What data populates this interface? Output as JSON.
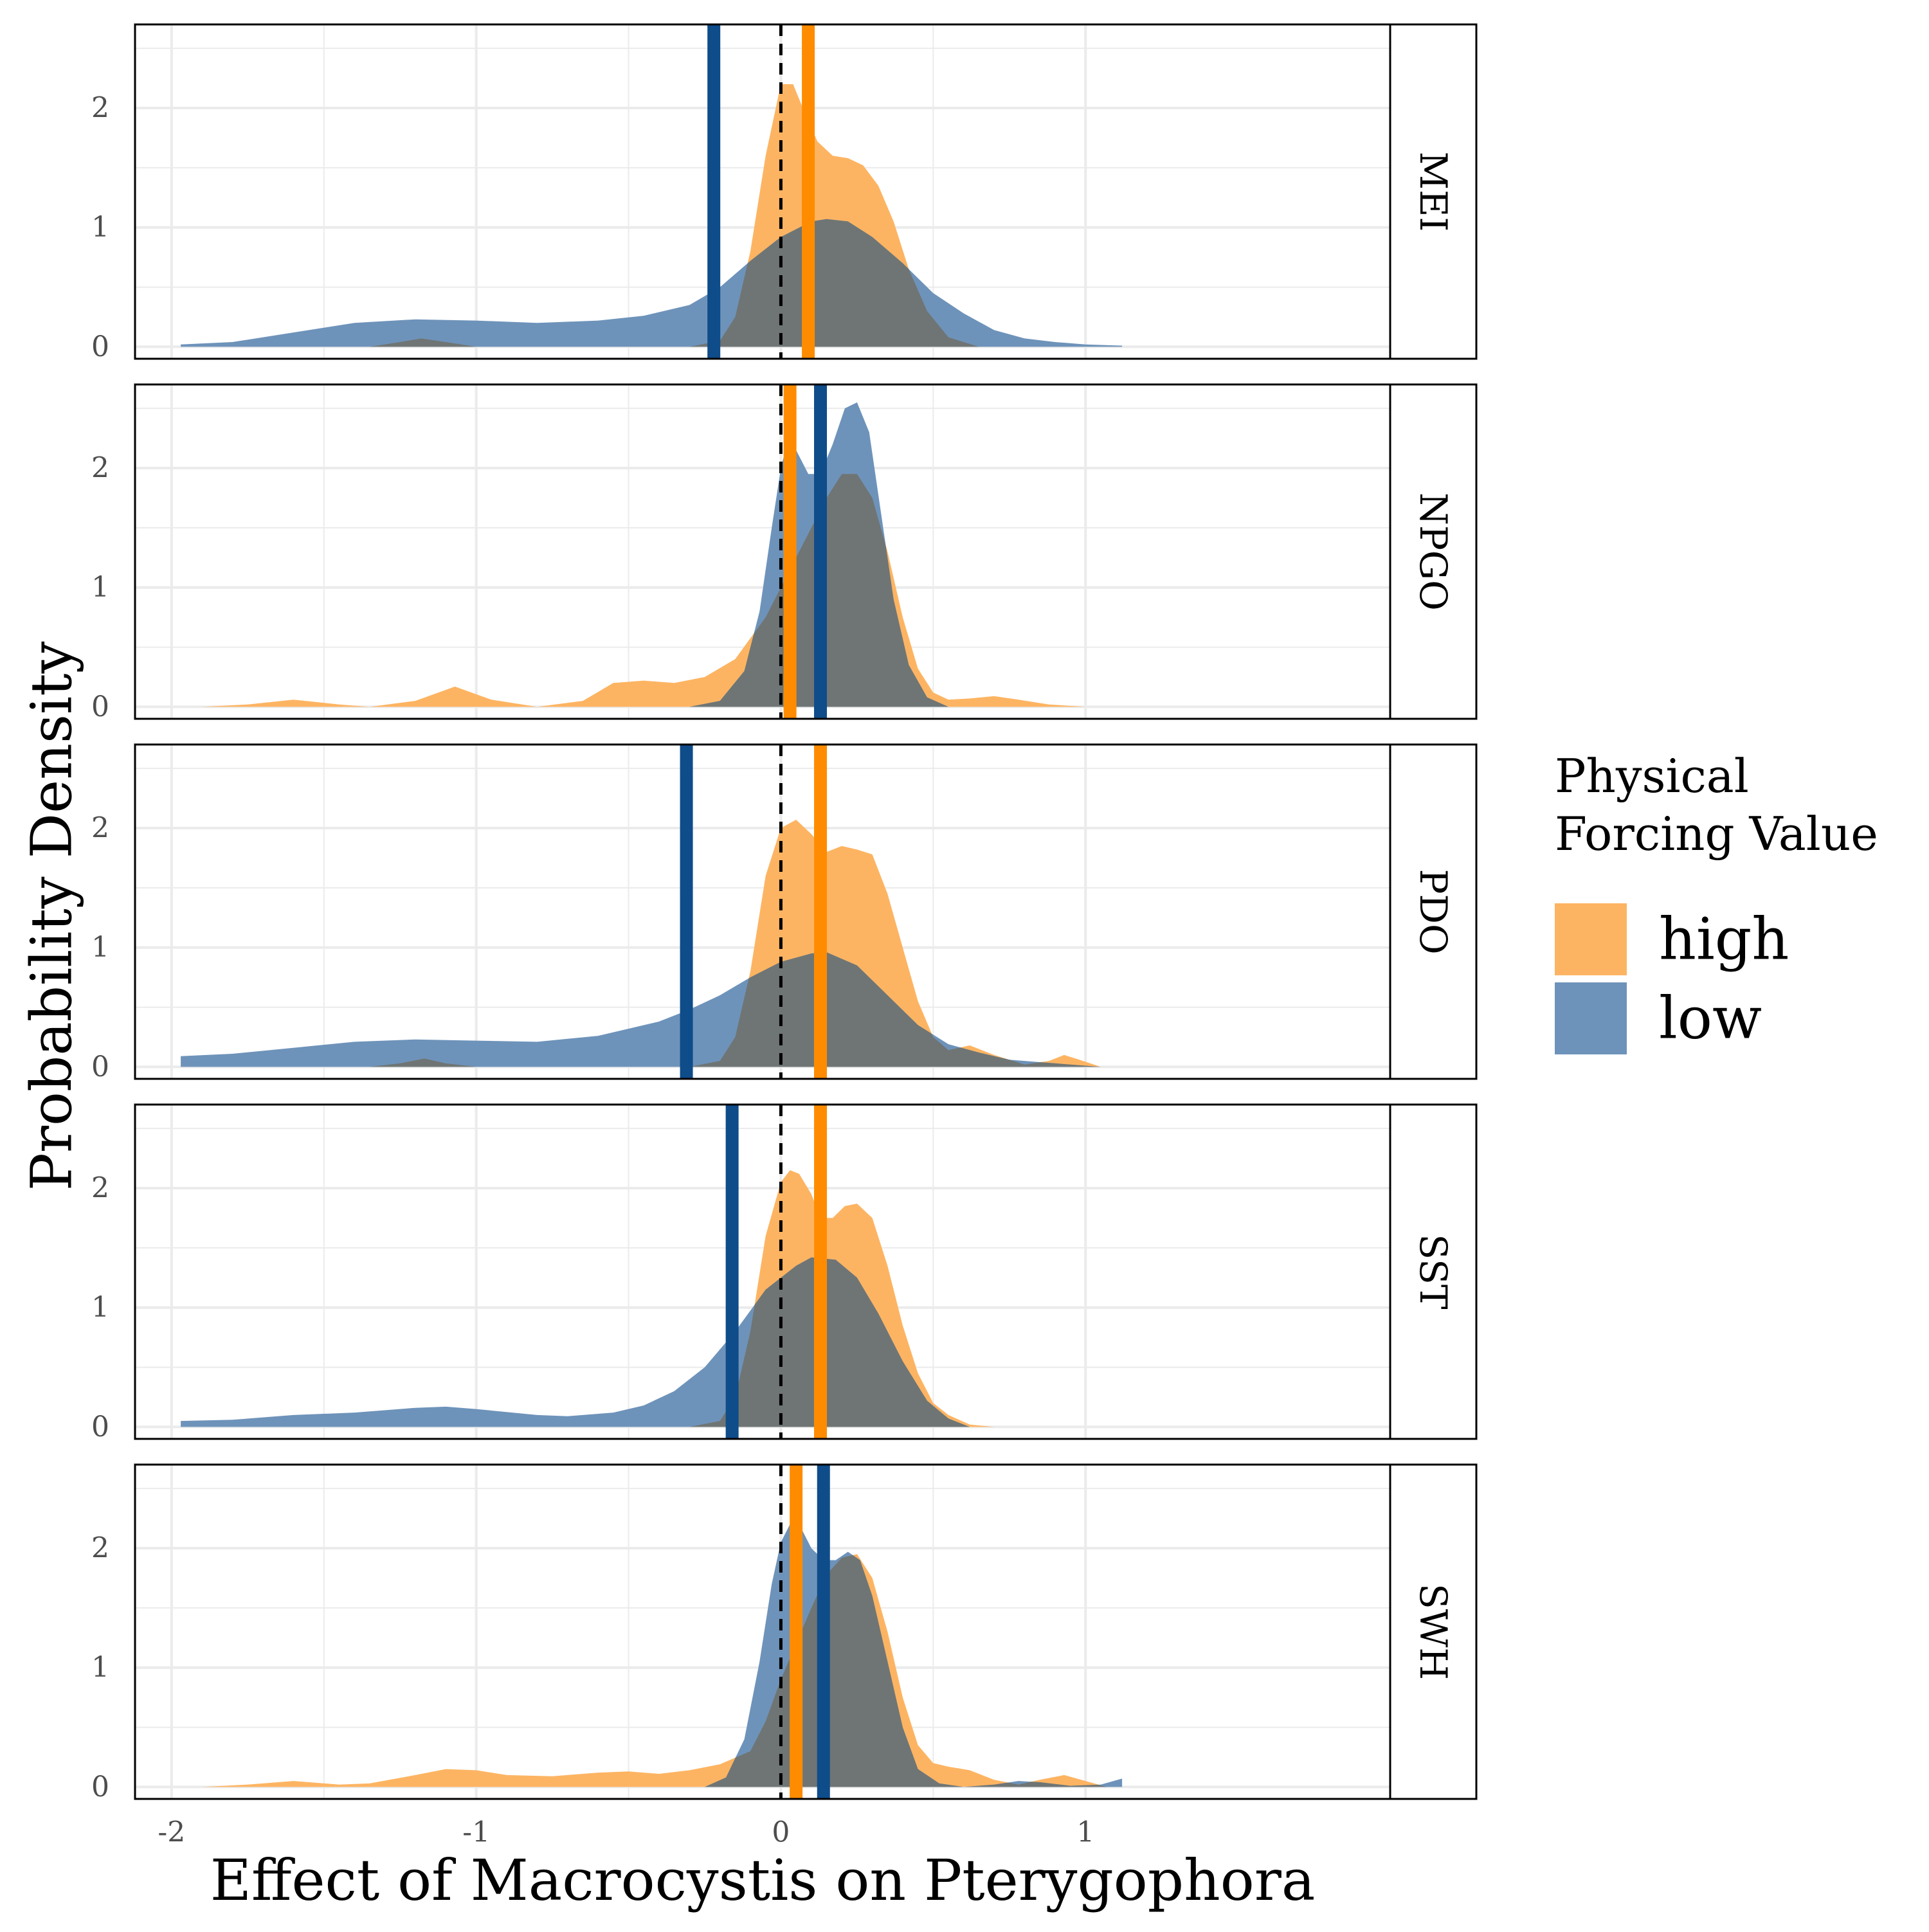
{
  "chart_data": {
    "type": "area",
    "xlabel": "Effect of Macrocystis on Pterygophora",
    "ylabel": "Probability Density",
    "xlim": [
      -2.12,
      2.0
    ],
    "ylim": [
      -0.1,
      2.7
    ],
    "x_ticks": [
      -2,
      -1,
      0,
      1
    ],
    "x_tick_labels": [
      "-2",
      "-1",
      "0",
      "1"
    ],
    "y_ticks": [
      0,
      1,
      2
    ],
    "y_tick_labels": [
      "0",
      "1",
      "2"
    ],
    "reference_line_x": 0,
    "grid": true,
    "legend": {
      "title_lines": [
        "Physical",
        "Forcing Value"
      ],
      "position": "right",
      "items": [
        {
          "label": "high",
          "color": "#FDB462"
        },
        {
          "label": "low",
          "color": "#6E93BA"
        }
      ]
    },
    "colors": {
      "high_fill": "#FDB462",
      "low_fill": "#6E93BA",
      "overlap_fill": "#6F7574",
      "high_line": "#FF8C00",
      "low_line": "#0F4C8A",
      "grid": "#EBEBEB",
      "strip_text": "#000000"
    },
    "panels": [
      {
        "label": "MEI",
        "high_mean": 0.09,
        "low_mean": -0.22,
        "high": [
          [
            -1.35,
            0.0
          ],
          [
            -1.25,
            0.04
          ],
          [
            -1.18,
            0.07
          ],
          [
            -1.1,
            0.04
          ],
          [
            -1.0,
            0.0
          ],
          [
            -0.3,
            0.0
          ],
          [
            -0.2,
            0.05
          ],
          [
            -0.15,
            0.25
          ],
          [
            -0.1,
            0.8
          ],
          [
            -0.05,
            1.6
          ],
          [
            0.0,
            2.2
          ],
          [
            0.04,
            2.2
          ],
          [
            0.08,
            1.95
          ],
          [
            0.12,
            1.72
          ],
          [
            0.17,
            1.6
          ],
          [
            0.22,
            1.58
          ],
          [
            0.27,
            1.52
          ],
          [
            0.32,
            1.35
          ],
          [
            0.37,
            1.05
          ],
          [
            0.42,
            0.65
          ],
          [
            0.48,
            0.3
          ],
          [
            0.55,
            0.08
          ],
          [
            0.65,
            0.0
          ]
        ],
        "low": [
          [
            -1.97,
            0.02
          ],
          [
            -1.8,
            0.04
          ],
          [
            -1.6,
            0.12
          ],
          [
            -1.4,
            0.2
          ],
          [
            -1.2,
            0.23
          ],
          [
            -1.0,
            0.22
          ],
          [
            -0.8,
            0.2
          ],
          [
            -0.6,
            0.22
          ],
          [
            -0.45,
            0.26
          ],
          [
            -0.3,
            0.35
          ],
          [
            -0.2,
            0.5
          ],
          [
            -0.1,
            0.72
          ],
          [
            0.0,
            0.92
          ],
          [
            0.1,
            1.05
          ],
          [
            0.15,
            1.07
          ],
          [
            0.22,
            1.05
          ],
          [
            0.3,
            0.92
          ],
          [
            0.4,
            0.7
          ],
          [
            0.5,
            0.45
          ],
          [
            0.6,
            0.28
          ],
          [
            0.7,
            0.14
          ],
          [
            0.8,
            0.07
          ],
          [
            0.9,
            0.04
          ],
          [
            1.0,
            0.02
          ],
          [
            1.12,
            0.01
          ]
        ]
      },
      {
        "label": "NPGO",
        "high_mean": 0.03,
        "low_mean": 0.13,
        "high": [
          [
            -1.9,
            0.0
          ],
          [
            -1.75,
            0.02
          ],
          [
            -1.6,
            0.06
          ],
          [
            -1.45,
            0.02
          ],
          [
            -1.35,
            0.0
          ],
          [
            -1.2,
            0.05
          ],
          [
            -1.07,
            0.17
          ],
          [
            -0.95,
            0.06
          ],
          [
            -0.8,
            0.0
          ],
          [
            -0.65,
            0.05
          ],
          [
            -0.55,
            0.2
          ],
          [
            -0.45,
            0.22
          ],
          [
            -0.35,
            0.2
          ],
          [
            -0.25,
            0.25
          ],
          [
            -0.15,
            0.4
          ],
          [
            -0.05,
            0.75
          ],
          [
            0.0,
            1.0
          ],
          [
            0.05,
            1.25
          ],
          [
            0.1,
            1.5
          ],
          [
            0.15,
            1.75
          ],
          [
            0.2,
            1.95
          ],
          [
            0.25,
            1.95
          ],
          [
            0.3,
            1.75
          ],
          [
            0.35,
            1.3
          ],
          [
            0.4,
            0.75
          ],
          [
            0.45,
            0.32
          ],
          [
            0.5,
            0.12
          ],
          [
            0.55,
            0.06
          ],
          [
            0.62,
            0.07
          ],
          [
            0.7,
            0.09
          ],
          [
            0.78,
            0.06
          ],
          [
            0.88,
            0.02
          ],
          [
            1.0,
            0.0
          ]
        ],
        "low": [
          [
            -0.3,
            0.0
          ],
          [
            -0.2,
            0.05
          ],
          [
            -0.12,
            0.3
          ],
          [
            -0.07,
            0.8
          ],
          [
            -0.03,
            1.5
          ],
          [
            0.0,
            2.0
          ],
          [
            0.02,
            2.2
          ],
          [
            0.05,
            2.15
          ],
          [
            0.09,
            1.95
          ],
          [
            0.13,
            1.95
          ],
          [
            0.17,
            2.2
          ],
          [
            0.21,
            2.5
          ],
          [
            0.25,
            2.55
          ],
          [
            0.29,
            2.3
          ],
          [
            0.33,
            1.6
          ],
          [
            0.37,
            0.9
          ],
          [
            0.42,
            0.35
          ],
          [
            0.48,
            0.08
          ],
          [
            0.55,
            0.0
          ]
        ]
      },
      {
        "label": "PDO",
        "high_mean": 0.13,
        "low_mean": -0.31,
        "high": [
          [
            -1.35,
            0.0
          ],
          [
            -1.25,
            0.03
          ],
          [
            -1.17,
            0.07
          ],
          [
            -1.1,
            0.03
          ],
          [
            -1.0,
            0.0
          ],
          [
            -0.3,
            0.0
          ],
          [
            -0.2,
            0.05
          ],
          [
            -0.15,
            0.25
          ],
          [
            -0.1,
            0.8
          ],
          [
            -0.05,
            1.6
          ],
          [
            0.0,
            2.0
          ],
          [
            0.05,
            2.07
          ],
          [
            0.1,
            1.95
          ],
          [
            0.15,
            1.8
          ],
          [
            0.2,
            1.85
          ],
          [
            0.25,
            1.82
          ],
          [
            0.3,
            1.78
          ],
          [
            0.35,
            1.45
          ],
          [
            0.4,
            1.0
          ],
          [
            0.45,
            0.55
          ],
          [
            0.5,
            0.25
          ],
          [
            0.55,
            0.14
          ],
          [
            0.62,
            0.18
          ],
          [
            0.7,
            0.1
          ],
          [
            0.8,
            0.02
          ],
          [
            0.88,
            0.05
          ],
          [
            0.93,
            0.1
          ],
          [
            0.98,
            0.06
          ],
          [
            1.05,
            0.0
          ]
        ],
        "low": [
          [
            -1.97,
            0.09
          ],
          [
            -1.8,
            0.11
          ],
          [
            -1.6,
            0.16
          ],
          [
            -1.4,
            0.21
          ],
          [
            -1.2,
            0.23
          ],
          [
            -1.0,
            0.22
          ],
          [
            -0.8,
            0.21
          ],
          [
            -0.6,
            0.26
          ],
          [
            -0.4,
            0.38
          ],
          [
            -0.3,
            0.48
          ],
          [
            -0.2,
            0.6
          ],
          [
            -0.1,
            0.75
          ],
          [
            0.0,
            0.88
          ],
          [
            0.1,
            0.95
          ],
          [
            0.15,
            0.96
          ],
          [
            0.25,
            0.85
          ],
          [
            0.35,
            0.6
          ],
          [
            0.45,
            0.35
          ],
          [
            0.55,
            0.19
          ],
          [
            0.65,
            0.12
          ],
          [
            0.75,
            0.06
          ],
          [
            0.9,
            0.03
          ],
          [
            1.05,
            0.0
          ]
        ]
      },
      {
        "label": "SST",
        "high_mean": 0.13,
        "low_mean": -0.16,
        "high": [
          [
            -0.3,
            0.0
          ],
          [
            -0.2,
            0.05
          ],
          [
            -0.15,
            0.25
          ],
          [
            -0.1,
            0.8
          ],
          [
            -0.05,
            1.6
          ],
          [
            0.0,
            2.05
          ],
          [
            0.03,
            2.15
          ],
          [
            0.06,
            2.12
          ],
          [
            0.1,
            1.95
          ],
          [
            0.13,
            1.75
          ],
          [
            0.17,
            1.75
          ],
          [
            0.21,
            1.85
          ],
          [
            0.25,
            1.87
          ],
          [
            0.3,
            1.75
          ],
          [
            0.35,
            1.35
          ],
          [
            0.4,
            0.85
          ],
          [
            0.45,
            0.45
          ],
          [
            0.5,
            0.2
          ],
          [
            0.55,
            0.1
          ],
          [
            0.62,
            0.02
          ],
          [
            0.7,
            0.0
          ]
        ],
        "low": [
          [
            -1.97,
            0.05
          ],
          [
            -1.8,
            0.06
          ],
          [
            -1.6,
            0.1
          ],
          [
            -1.4,
            0.12
          ],
          [
            -1.2,
            0.16
          ],
          [
            -1.1,
            0.17
          ],
          [
            -1.0,
            0.15
          ],
          [
            -0.8,
            0.1
          ],
          [
            -0.7,
            0.09
          ],
          [
            -0.55,
            0.12
          ],
          [
            -0.45,
            0.18
          ],
          [
            -0.35,
            0.3
          ],
          [
            -0.25,
            0.5
          ],
          [
            -0.15,
            0.8
          ],
          [
            -0.05,
            1.15
          ],
          [
            0.05,
            1.35
          ],
          [
            0.1,
            1.42
          ],
          [
            0.18,
            1.4
          ],
          [
            0.25,
            1.25
          ],
          [
            0.32,
            0.95
          ],
          [
            0.4,
            0.55
          ],
          [
            0.48,
            0.22
          ],
          [
            0.55,
            0.07
          ],
          [
            0.62,
            0.0
          ]
        ]
      },
      {
        "label": "SWH",
        "high_mean": 0.05,
        "low_mean": 0.14,
        "high": [
          [
            -1.9,
            0.0
          ],
          [
            -1.75,
            0.02
          ],
          [
            -1.6,
            0.05
          ],
          [
            -1.45,
            0.02
          ],
          [
            -1.35,
            0.03
          ],
          [
            -1.2,
            0.1
          ],
          [
            -1.1,
            0.15
          ],
          [
            -1.0,
            0.14
          ],
          [
            -0.9,
            0.1
          ],
          [
            -0.75,
            0.09
          ],
          [
            -0.6,
            0.12
          ],
          [
            -0.5,
            0.13
          ],
          [
            -0.4,
            0.11
          ],
          [
            -0.3,
            0.14
          ],
          [
            -0.2,
            0.19
          ],
          [
            -0.1,
            0.3
          ],
          [
            -0.05,
            0.55
          ],
          [
            0.0,
            0.9
          ],
          [
            0.05,
            1.2
          ],
          [
            0.1,
            1.5
          ],
          [
            0.15,
            1.78
          ],
          [
            0.2,
            1.92
          ],
          [
            0.25,
            1.95
          ],
          [
            0.3,
            1.75
          ],
          [
            0.35,
            1.3
          ],
          [
            0.4,
            0.75
          ],
          [
            0.45,
            0.35
          ],
          [
            0.5,
            0.2
          ],
          [
            0.55,
            0.17
          ],
          [
            0.62,
            0.14
          ],
          [
            0.7,
            0.06
          ],
          [
            0.78,
            0.02
          ],
          [
            0.85,
            0.06
          ],
          [
            0.93,
            0.1
          ],
          [
            1.0,
            0.05
          ],
          [
            1.07,
            0.0
          ]
        ],
        "low": [
          [
            -0.25,
            0.0
          ],
          [
            -0.18,
            0.08
          ],
          [
            -0.12,
            0.4
          ],
          [
            -0.07,
            1.05
          ],
          [
            -0.03,
            1.7
          ],
          [
            0.0,
            2.05
          ],
          [
            0.03,
            2.2
          ],
          [
            0.07,
            2.15
          ],
          [
            0.1,
            2.0
          ],
          [
            0.14,
            1.9
          ],
          [
            0.18,
            1.9
          ],
          [
            0.22,
            1.97
          ],
          [
            0.26,
            1.9
          ],
          [
            0.3,
            1.6
          ],
          [
            0.35,
            1.05
          ],
          [
            0.4,
            0.5
          ],
          [
            0.45,
            0.15
          ],
          [
            0.52,
            0.03
          ],
          [
            0.6,
            0.0
          ],
          [
            0.7,
            0.02
          ],
          [
            0.78,
            0.05
          ],
          [
            0.85,
            0.04
          ],
          [
            0.95,
            0.01
          ],
          [
            1.05,
            0.02
          ],
          [
            1.12,
            0.07
          ]
        ]
      }
    ]
  }
}
